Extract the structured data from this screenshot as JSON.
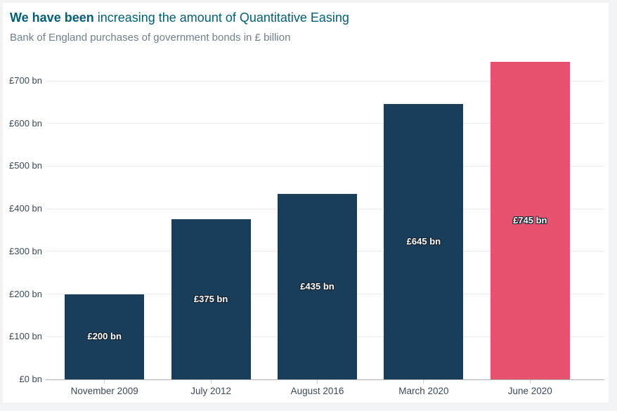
{
  "header": {
    "title_bold": "We have been",
    "title_rest": " increasing the amount of Quantitative Easing",
    "subtitle": "Bank of England purchases of government bonds in £ billion"
  },
  "chart_data": {
    "type": "bar",
    "title": "We have been increasing the amount of Quantitative Easing",
    "subtitle": "Bank of England purchases of government bonds in £ billion",
    "categories": [
      "November 2009",
      "July 2012",
      "August 2016",
      "March 2020",
      "June 2020"
    ],
    "values": [
      200,
      375,
      435,
      645,
      745
    ],
    "bar_labels": [
      "£200 bn",
      "£375 bn",
      "£435 bn",
      "£645 bn",
      "£745 bn"
    ],
    "yticks": [
      0,
      100,
      200,
      300,
      400,
      500,
      600,
      700
    ],
    "ytick_labels": [
      "£0 bn",
      "£100 bn",
      "£200 bn",
      "£300 bn",
      "£400 bn",
      "£500 bn",
      "£600 bn",
      "£700 bn"
    ],
    "ylim": [
      0,
      760
    ],
    "xlabel": "",
    "ylabel": "",
    "grid": true,
    "legend": "none",
    "highlight_index": 4,
    "colors": {
      "bar": "#1a3e5a",
      "highlight": "#e6536f",
      "title": "#035e73",
      "subtitle": "#6f7f88",
      "axis_label": "#3b4956",
      "gridline": "#eaebed",
      "baseline": "#aab2b8",
      "tick": "#c6ccd0",
      "bar_label_text": "#ffffff",
      "bar_label_outline": "#14232f",
      "card_bg": "#ffffff",
      "page_bg": "#f2f3f4"
    }
  }
}
